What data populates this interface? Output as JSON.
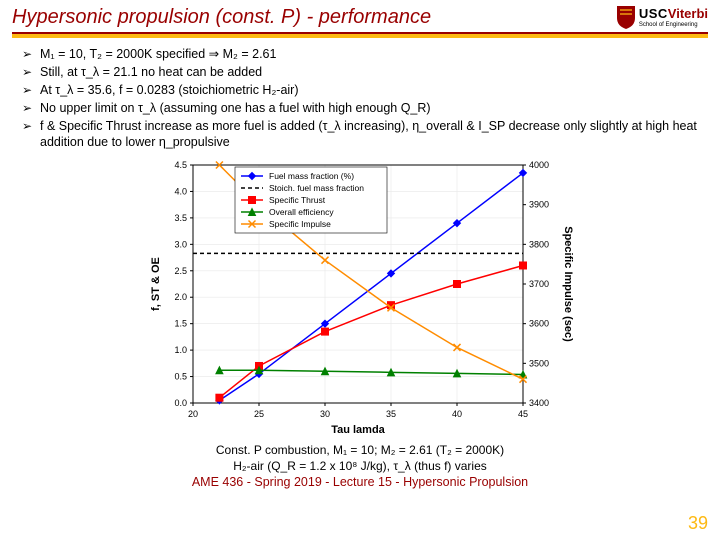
{
  "header": {
    "title": "Hypersonic propulsion (const. P) - performance",
    "logo": {
      "usc": "USC",
      "viterbi": "Viterbi",
      "sub": "School of Engineering"
    }
  },
  "bullets": [
    "M₁ = 10, T₂ = 2000K specified ⇒ M₂ = 2.61",
    "Still, at τ_λ = 21.1 no heat can be added",
    "At τ_λ = 35.6, f = 0.0283 (stoichiometric H₂-air)",
    "No upper limit on τ_λ (assuming one has a fuel with high enough Q_R)",
    "f & Specific Thrust increase as more fuel is added (τ_λ increasing), η_overall & I_SP decrease only slightly at high heat addition due to lower η_propulsive"
  ],
  "chart": {
    "type": "line",
    "background_color": "#ffffff",
    "plot_bg": "#ffffff",
    "grid_color": "#e8e8e8",
    "axis_color": "#000000",
    "xlabel": "Tau lamda",
    "ylabel_left": "f, ST & OE",
    "ylabel_right": "Specific Impulse (sec)",
    "label_fontsize": 11,
    "tick_fontsize": 9,
    "xlim": [
      20,
      45
    ],
    "xticks": [
      20,
      25,
      30,
      35,
      40,
      45
    ],
    "ylim_left": [
      0,
      4.5
    ],
    "yticks_left": [
      0,
      0.5,
      1.0,
      1.5,
      2.0,
      2.5,
      3.0,
      3.5,
      4.0,
      4.5
    ],
    "ylim_right": [
      3400,
      4000
    ],
    "yticks_right": [
      3400,
      3500,
      3600,
      3700,
      3800,
      3900,
      4000
    ],
    "legend": {
      "position": "top-inside",
      "items": [
        {
          "label": "Fuel mass fraction (%)",
          "color": "#0000ff",
          "marker": "diamond"
        },
        {
          "label": "Stoich. fuel mass fraction",
          "color": "#000000",
          "marker": "none",
          "dash": true
        },
        {
          "label": "Specific Thrust",
          "color": "#ff0000",
          "marker": "square"
        },
        {
          "label": "Overall efficiency",
          "color": "#008000",
          "marker": "triangle"
        },
        {
          "label": "Specific Impulse",
          "color": "#ff8c00",
          "marker": "x"
        }
      ]
    },
    "series": {
      "fuel_mass_fraction": {
        "axis": "left",
        "color": "#0000ff",
        "marker": "diamond",
        "x": [
          22,
          25,
          30,
          35,
          40,
          45
        ],
        "y": [
          0.05,
          0.55,
          1.5,
          2.45,
          3.4,
          4.35
        ]
      },
      "stoich": {
        "axis": "left",
        "color": "#000000",
        "dash": true,
        "x": [
          20,
          45
        ],
        "y": [
          2.83,
          2.83
        ]
      },
      "specific_thrust": {
        "axis": "left",
        "color": "#ff0000",
        "marker": "square",
        "x": [
          22,
          25,
          30,
          35,
          40,
          45
        ],
        "y": [
          0.1,
          0.7,
          1.35,
          1.85,
          2.25,
          2.6
        ]
      },
      "overall_eff": {
        "axis": "left",
        "color": "#008000",
        "marker": "triangle",
        "x": [
          22,
          25,
          30,
          35,
          40,
          45
        ],
        "y": [
          0.62,
          0.62,
          0.6,
          0.58,
          0.56,
          0.54
        ]
      },
      "specific_impulse": {
        "axis": "right",
        "color": "#ff8c00",
        "marker": "x",
        "x": [
          22,
          25,
          30,
          35,
          40,
          45
        ],
        "y": [
          4000,
          3900,
          3760,
          3640,
          3540,
          3460
        ]
      }
    }
  },
  "caption": {
    "line1": "Const. P combustion, M₁ = 10; M₂ = 2.61 (T₂ = 2000K)",
    "line2": "H₂-air (Q_R = 1.2 x 10⁸ J/kg), τ_λ (thus f) varies",
    "course": "AME 436 - Spring 2019 - Lecture 15 - Hypersonic Propulsion"
  },
  "page_number": "39"
}
